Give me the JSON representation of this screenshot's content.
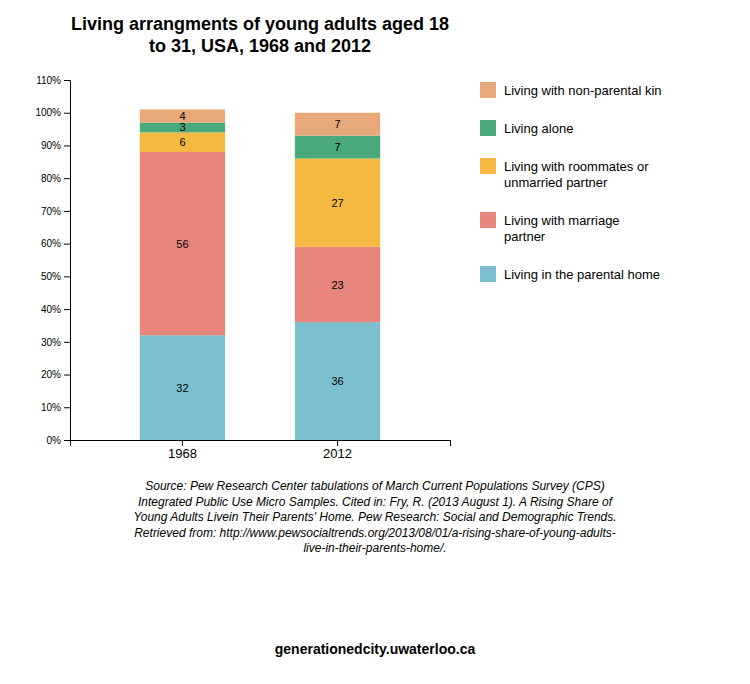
{
  "chart_data": {
    "type": "bar",
    "stacked": true,
    "title": "Living arrangments of young adults aged 18\nto 31, USA, 1968 and 2012",
    "categories": [
      "1968",
      "2012"
    ],
    "series": [
      {
        "name": "Living in the parental home",
        "color": "#7bbfd0",
        "values": [
          32,
          36
        ]
      },
      {
        "name": "Living with marriage\npartner",
        "color": "#e8857a",
        "values": [
          56,
          23
        ]
      },
      {
        "name": "Living with roommates or\nunmarried partner",
        "color": "#f5b942",
        "values": [
          6,
          27
        ]
      },
      {
        "name": "Living alone",
        "color": "#4aaa7a",
        "values": [
          3,
          7
        ]
      },
      {
        "name": "Living with non-parental kin",
        "color": "#e8a87a",
        "values": [
          4,
          7
        ]
      }
    ],
    "ylim": [
      0,
      110
    ],
    "yticks": [
      {
        "value": 0,
        "label": "0%"
      },
      {
        "value": 10,
        "label": "10%"
      },
      {
        "value": 20,
        "label": "20%"
      },
      {
        "value": 30,
        "label": "30%"
      },
      {
        "value": 40,
        "label": "40%"
      },
      {
        "value": 50,
        "label": "50%"
      },
      {
        "value": 60,
        "label": "60%"
      },
      {
        "value": 70,
        "label": "70%"
      },
      {
        "value": 80,
        "label": "80%"
      },
      {
        "value": 90,
        "label": "90%"
      },
      {
        "value": 100,
        "label": "100%"
      },
      {
        "value": 110,
        "label": "110%"
      }
    ],
    "grid": false,
    "legend": "right",
    "data_labels": true,
    "annotations": [
      "Source: Pew Research Center tabulations of March Current Populations Survey (CPS)\nIntegrated Public Use Micro Samples. Cited in: Fry, R. (2013 August 1). A Rising Share of\nYoung Adults Livein Their Parents' Home. Pew Research: Social and Demographic Trends.\nRetrieved from: http://www.pewsocialtrends.org/2013/08/01/a-rising-share-of-young-adults-\nlive-in-their-parents-home/.",
      "generationedcity.uwaterloo.ca"
    ]
  }
}
